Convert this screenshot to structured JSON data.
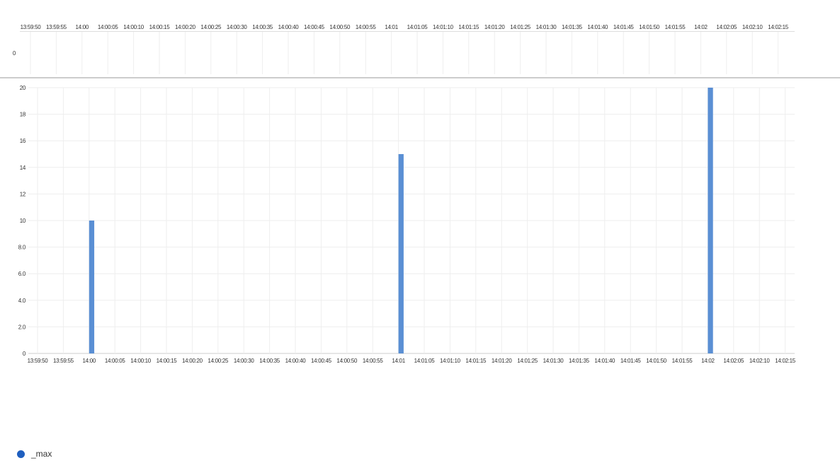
{
  "chart_data": {
    "type": "bar",
    "x_ticks": [
      "13:59:50",
      "13:59:55",
      "14:00",
      "14:00:05",
      "14:00:10",
      "14:00:15",
      "14:00:20",
      "14:00:25",
      "14:00:30",
      "14:00:35",
      "14:00:40",
      "14:00:45",
      "14:00:50",
      "14:00:55",
      "14:01",
      "14:01:05",
      "14:01:10",
      "14:01:15",
      "14:01:20",
      "14:01:25",
      "14:01:30",
      "14:01:35",
      "14:01:40",
      "14:01:45",
      "14:01:50",
      "14:01:55",
      "14:02",
      "14:02:05",
      "14:02:10",
      "14:02:15"
    ],
    "y_ticks": [
      "0",
      "2.0",
      "4.0",
      "6.0",
      "8.0",
      "10",
      "12",
      "14",
      "16",
      "18",
      "20"
    ],
    "ylim": [
      0,
      20
    ],
    "grid": true,
    "series": [
      {
        "name": "_max",
        "color": "#5a8fd4",
        "points": [
          {
            "x": "14:00:00",
            "y": 10
          },
          {
            "x": "14:01:00",
            "y": 15
          },
          {
            "x": "14:02:00",
            "y": 20
          }
        ]
      }
    ],
    "overview": {
      "y_ticks": [
        "0"
      ]
    },
    "legend": {
      "placement": "bottom-left",
      "entries": [
        {
          "label": "_max",
          "color": "#1f5fbf"
        }
      ]
    }
  }
}
